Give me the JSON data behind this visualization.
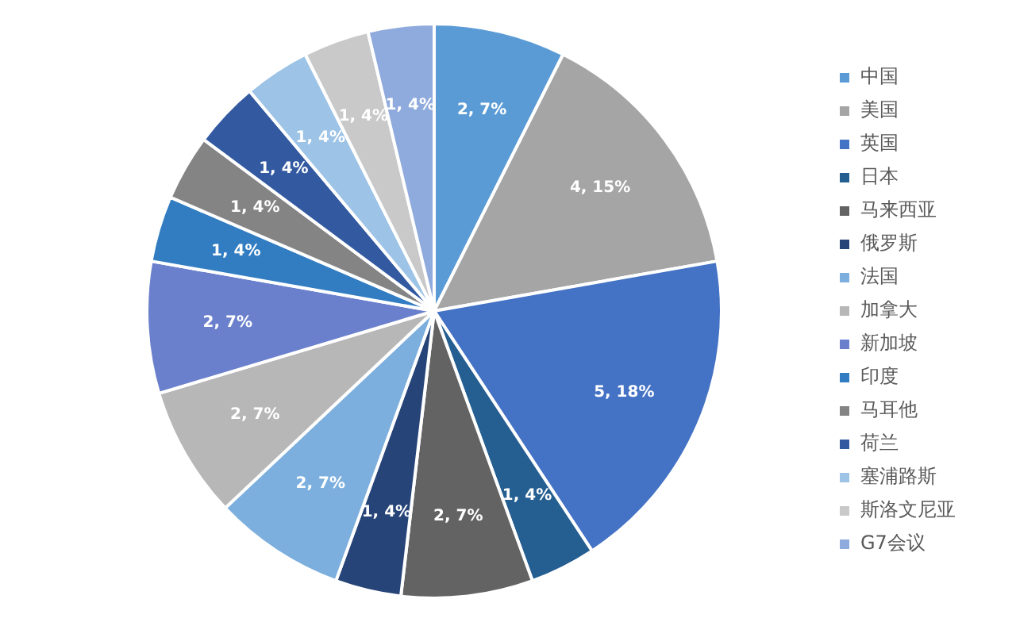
{
  "chart_data": {
    "type": "pie",
    "categories": [
      "中国",
      "美国",
      "英国",
      "日本",
      "马来西亚",
      "俄罗斯",
      "法国",
      "加拿大",
      "新加坡",
      "印度",
      "马耳他",
      "荷兰",
      "塞浦路斯",
      "斯洛文尼亚",
      "G7会议"
    ],
    "values": [
      2,
      4,
      5,
      1,
      2,
      1,
      2,
      2,
      2,
      1,
      1,
      1,
      1,
      1,
      1
    ],
    "value_labels": [
      "2, 7%",
      "4, 15%",
      "5, 18%",
      "1, 4%",
      "2, 7%",
      "1, 4%",
      "2, 7%",
      "2, 7%",
      "2, 7%",
      "1, 4%",
      "1, 4%",
      "1, 4%",
      "1, 4%",
      "1, 4%",
      "1, 4%"
    ],
    "colors": [
      "#5b9bd5",
      "#a5a5a5",
      "#4472c4",
      "#255e91",
      "#636363",
      "#264478",
      "#7cafdd",
      "#b7b7b7",
      "#6b80cc",
      "#327dc2",
      "#848484",
      "#335aa1",
      "#9dc3e6",
      "#c9c9c9",
      "#8faadc"
    ],
    "legend": "right"
  }
}
